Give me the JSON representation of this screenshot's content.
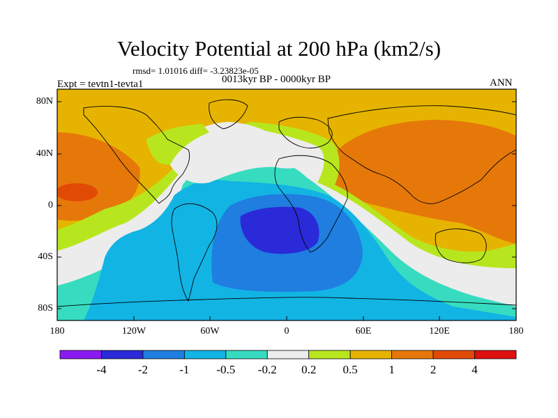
{
  "title": "Velocity Potential at 200 hPa (km2/s)",
  "stats": "rmsd= 1.01016 diff= -3.23823e-05",
  "period": "0013kyr BP - 0000kyr BP",
  "experiment": "Expt = tevtn1-tevta1",
  "season": "ANN",
  "lat_ticks": [
    "80N",
    "40N",
    "0",
    "40S",
    "80S"
  ],
  "lon_ticks": [
    "180",
    "120W",
    "60W",
    "0",
    "60E",
    "120E",
    "180"
  ],
  "colorbar": {
    "colors": [
      "#8a1bf0",
      "#2a2ad8",
      "#1f7ee0",
      "#12b4e4",
      "#37dcc0",
      "#ececec",
      "#b8e61e",
      "#e6b400",
      "#e6780a",
      "#e04a05",
      "#e01010"
    ],
    "labels": [
      "-4",
      "-2",
      "-1",
      "-0.5",
      "-0.2",
      "0.2",
      "0.5",
      "1",
      "2",
      "4"
    ]
  }
}
